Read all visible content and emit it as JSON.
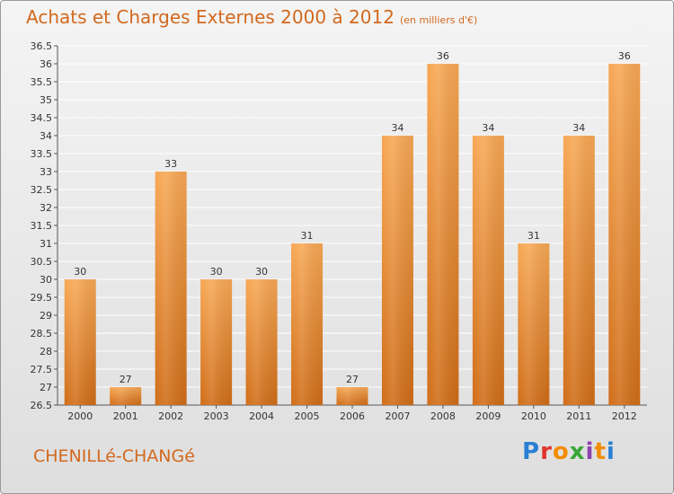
{
  "header": {
    "title": "Achats et Charges Externes 2000 à 2012",
    "subtitle": "(en milliers d'€)"
  },
  "footer": {
    "commune": "CHENILLé-CHANGé",
    "brand": "Proxiti",
    "brand_colors": [
      "#2a7fd4",
      "#e3342f",
      "#f28c00",
      "#3aa635",
      "#8e44ad",
      "#f28c00",
      "#2a7fd4"
    ]
  },
  "colors": {
    "bar_top": "#f7a855",
    "bar_bottom": "#d06d18",
    "title": "#d2691e",
    "grid": "#ffffff"
  },
  "chart_data": {
    "type": "bar",
    "categories": [
      "2000",
      "2001",
      "2002",
      "2003",
      "2004",
      "2005",
      "2006",
      "2007",
      "2008",
      "2009",
      "2010",
      "2011",
      "2012"
    ],
    "values": [
      30,
      27,
      33,
      30,
      30,
      31,
      27,
      34,
      36,
      34,
      31,
      34,
      36
    ],
    "data_labels": [
      "30",
      "27",
      "33",
      "30",
      "30",
      "31",
      "27",
      "34",
      "36",
      "34",
      "31",
      "34",
      "36"
    ],
    "yticks": [
      "26.5",
      "27",
      "27.5",
      "28",
      "28.5",
      "29",
      "29.5",
      "30",
      "30.5",
      "31",
      "31.5",
      "32",
      "32.5",
      "33",
      "33.5",
      "34",
      "34.5",
      "35",
      "35.5",
      "36",
      "36.5"
    ],
    "ylim": [
      26.5,
      36.5
    ],
    "grid": true
  }
}
